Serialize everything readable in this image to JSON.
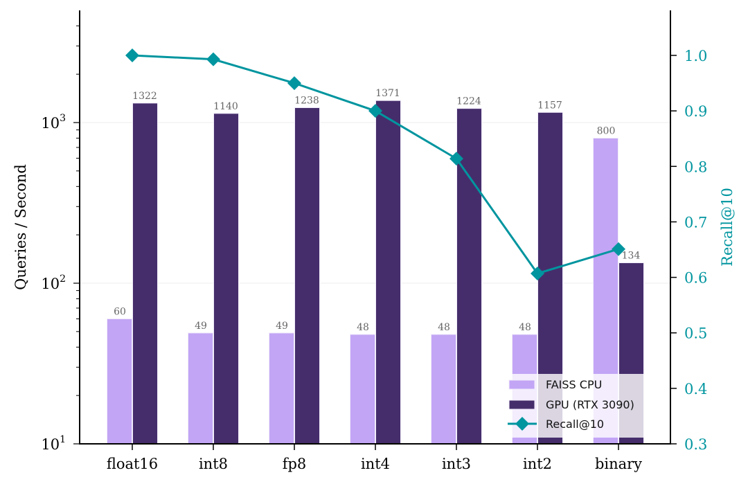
{
  "chart_data": {
    "type": "bar",
    "title": "",
    "xlabel": "",
    "ylabel": "Queries / Second",
    "y_scale": "log",
    "ylim": [
      10,
      5000
    ],
    "y_ticks": [
      {
        "value": 10,
        "base": "10",
        "exp": "1"
      },
      {
        "value": 100,
        "base": "10",
        "exp": "2"
      },
      {
        "value": 1000,
        "base": "10",
        "exp": "3"
      }
    ],
    "categories": [
      "float16",
      "int8",
      "fp8",
      "int4",
      "int3",
      "int2",
      "binary"
    ],
    "series": [
      {
        "name": "FAISS CPU",
        "kind": "bar",
        "color": "#c2a5f5",
        "values": [
          60,
          49,
          49,
          48,
          48,
          48,
          800
        ],
        "labels": [
          "60",
          "49",
          "49",
          "48",
          "48",
          "48",
          "800"
        ]
      },
      {
        "name": "GPU (RTX 3090)",
        "kind": "bar",
        "color": "#452d6b",
        "values": [
          1322,
          1140,
          1238,
          1371,
          1224,
          1157,
          134
        ],
        "labels": [
          "1322",
          "1140",
          "1238",
          "1371",
          "1224",
          "1157",
          "134"
        ]
      },
      {
        "name": "Recall@10",
        "kind": "line",
        "axis": "right",
        "marker": "diamond",
        "color": "#00959f",
        "values": [
          1.0,
          0.993,
          0.95,
          0.9,
          0.814,
          0.607,
          0.651
        ]
      }
    ],
    "y2label": "Recall@10",
    "y2lim": [
      0.3,
      1.08
    ],
    "y2_ticks": [
      "0.3",
      "0.4",
      "0.5",
      "0.6",
      "0.7",
      "0.8",
      "0.9",
      "1.0"
    ],
    "grid": true,
    "legend_position": "lower-right",
    "legend": [
      "FAISS CPU",
      "GPU (RTX 3090)",
      "Recall@10"
    ]
  }
}
